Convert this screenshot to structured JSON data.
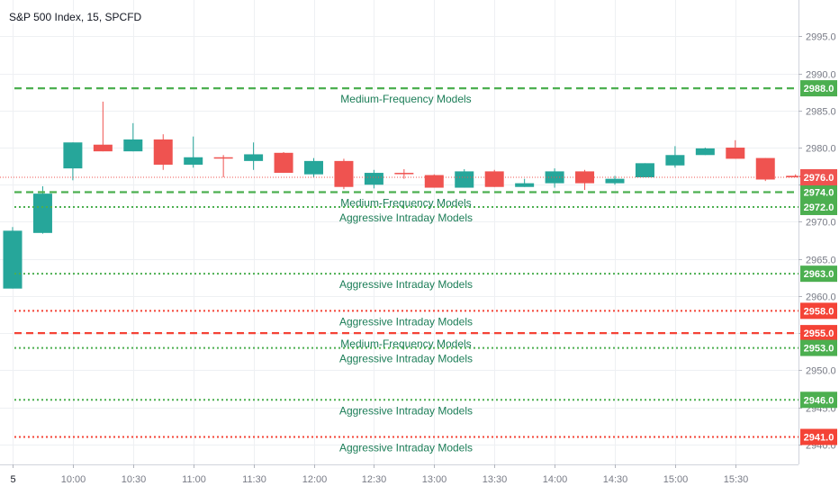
{
  "header": {
    "ticker_label": "S&P 500 Index, 15, SPCFD"
  },
  "colors": {
    "up": "#26a69a",
    "down": "#ef5350",
    "level_green": "#4caf50",
    "level_red": "#f44336",
    "grid": "#eef0f3",
    "axis_text": "#787b86",
    "label_text": "#1b7d57",
    "last_price": "#ef5350"
  },
  "chart_data": {
    "type": "candlestick",
    "ylim": [
      2937.3,
      2999.9
    ],
    "x_ticks": [
      "5",
      "10:00",
      "10:30",
      "11:00",
      "11:30",
      "12:00",
      "12:30",
      "13:00",
      "13:30",
      "14:00",
      "14:30",
      "15:00",
      "15:30"
    ],
    "y_ticks": [
      "2995.0",
      "2990.0",
      "2985.0",
      "2980.0",
      "2975.0",
      "2970.0",
      "2965.0",
      "2960.0",
      "2955.0",
      "2950.0",
      "2945.0",
      "2940.0"
    ],
    "candles": [
      {
        "open": 2961.0,
        "high": 2969.3,
        "low": 2961.0,
        "close": 2968.8
      },
      {
        "open": 2968.5,
        "high": 2974.8,
        "low": 2968.4,
        "close": 2973.8
      },
      {
        "open": 2977.2,
        "high": 2980.7,
        "low": 2975.6,
        "close": 2980.7
      },
      {
        "open": 2980.4,
        "high": 2986.2,
        "low": 2979.5,
        "close": 2979.5
      },
      {
        "open": 2979.5,
        "high": 2983.3,
        "low": 2979.5,
        "close": 2981.1
      },
      {
        "open": 2981.1,
        "high": 2981.8,
        "low": 2977.0,
        "close": 2977.7
      },
      {
        "open": 2977.7,
        "high": 2981.5,
        "low": 2977.3,
        "close": 2978.7
      },
      {
        "open": 2978.7,
        "high": 2979.0,
        "low": 2976.0,
        "close": 2978.6
      },
      {
        "open": 2978.2,
        "high": 2980.7,
        "low": 2977.0,
        "close": 2979.1
      },
      {
        "open": 2979.3,
        "high": 2979.4,
        "low": 2976.6,
        "close": 2976.6
      },
      {
        "open": 2976.4,
        "high": 2978.6,
        "low": 2976.0,
        "close": 2978.2
      },
      {
        "open": 2978.2,
        "high": 2978.5,
        "low": 2974.4,
        "close": 2974.7
      },
      {
        "open": 2975.0,
        "high": 2977.0,
        "low": 2974.5,
        "close": 2976.6
      },
      {
        "open": 2976.6,
        "high": 2977.1,
        "low": 2975.8,
        "close": 2976.5
      },
      {
        "open": 2976.3,
        "high": 2976.4,
        "low": 2974.6,
        "close": 2974.6
      },
      {
        "open": 2974.6,
        "high": 2977.1,
        "low": 2974.6,
        "close": 2976.8
      },
      {
        "open": 2976.8,
        "high": 2977.0,
        "low": 2974.7,
        "close": 2974.7
      },
      {
        "open": 2974.7,
        "high": 2975.8,
        "low": 2974.7,
        "close": 2975.2
      },
      {
        "open": 2975.2,
        "high": 2977.2,
        "low": 2974.6,
        "close": 2976.8
      },
      {
        "open": 2976.8,
        "high": 2977.0,
        "low": 2974.3,
        "close": 2975.2
      },
      {
        "open": 2975.2,
        "high": 2976.2,
        "low": 2975.0,
        "close": 2975.8
      },
      {
        "open": 2976.0,
        "high": 2977.9,
        "low": 2976.0,
        "close": 2977.9
      },
      {
        "open": 2977.6,
        "high": 2980.2,
        "low": 2977.3,
        "close": 2979.0
      },
      {
        "open": 2979.0,
        "high": 2980.0,
        "low": 2979.0,
        "close": 2979.9
      },
      {
        "open": 2980.0,
        "high": 2981.0,
        "low": 2978.5,
        "close": 2978.5
      },
      {
        "open": 2978.6,
        "high": 2978.6,
        "low": 2975.5,
        "close": 2975.7
      },
      {
        "open": 2976.2,
        "high": 2976.4,
        "low": 2976.0,
        "close": 2976.0
      }
    ],
    "last_price": 2976.0,
    "levels": [
      {
        "price": 2988.0,
        "style": "dashed",
        "color": "green",
        "label": "Medium-Frequency Models",
        "label_pos": "below",
        "price_label": "2988.0"
      },
      {
        "price": 2974.0,
        "style": "dashed",
        "color": "green",
        "label": "Medium-Frequency Models",
        "label_pos": "below",
        "price_label": "2974.0"
      },
      {
        "price": 2972.0,
        "style": "dotted",
        "color": "green",
        "label": "Aggressive Intraday Models",
        "label_pos": "below",
        "price_label": "2972.0"
      },
      {
        "price": 2963.0,
        "style": "dotted",
        "color": "green",
        "label": "Aggressive Intraday Models",
        "label_pos": "below",
        "price_label": "2963.0"
      },
      {
        "price": 2958.0,
        "style": "dotted",
        "color": "red",
        "label": "Aggressive Intraday Models",
        "label_pos": "below",
        "price_label": "2958.0"
      },
      {
        "price": 2955.0,
        "style": "dashed",
        "color": "red",
        "label": "Medium-Frequency Models",
        "label_pos": "below",
        "price_label": "2955.0"
      },
      {
        "price": 2953.0,
        "style": "dotted",
        "color": "green",
        "label": "Aggressive Intraday Models",
        "label_pos": "below",
        "price_label": "2953.0"
      },
      {
        "price": 2946.0,
        "style": "dotted",
        "color": "green",
        "label": "Aggressive Intraday Models",
        "label_pos": "below",
        "price_label": "2946.0"
      },
      {
        "price": 2941.0,
        "style": "dotted",
        "color": "red",
        "label": "Aggressive Intraday Models",
        "label_pos": "below",
        "price_label": "2941.0"
      }
    ],
    "last_price_label": "2976.0"
  }
}
